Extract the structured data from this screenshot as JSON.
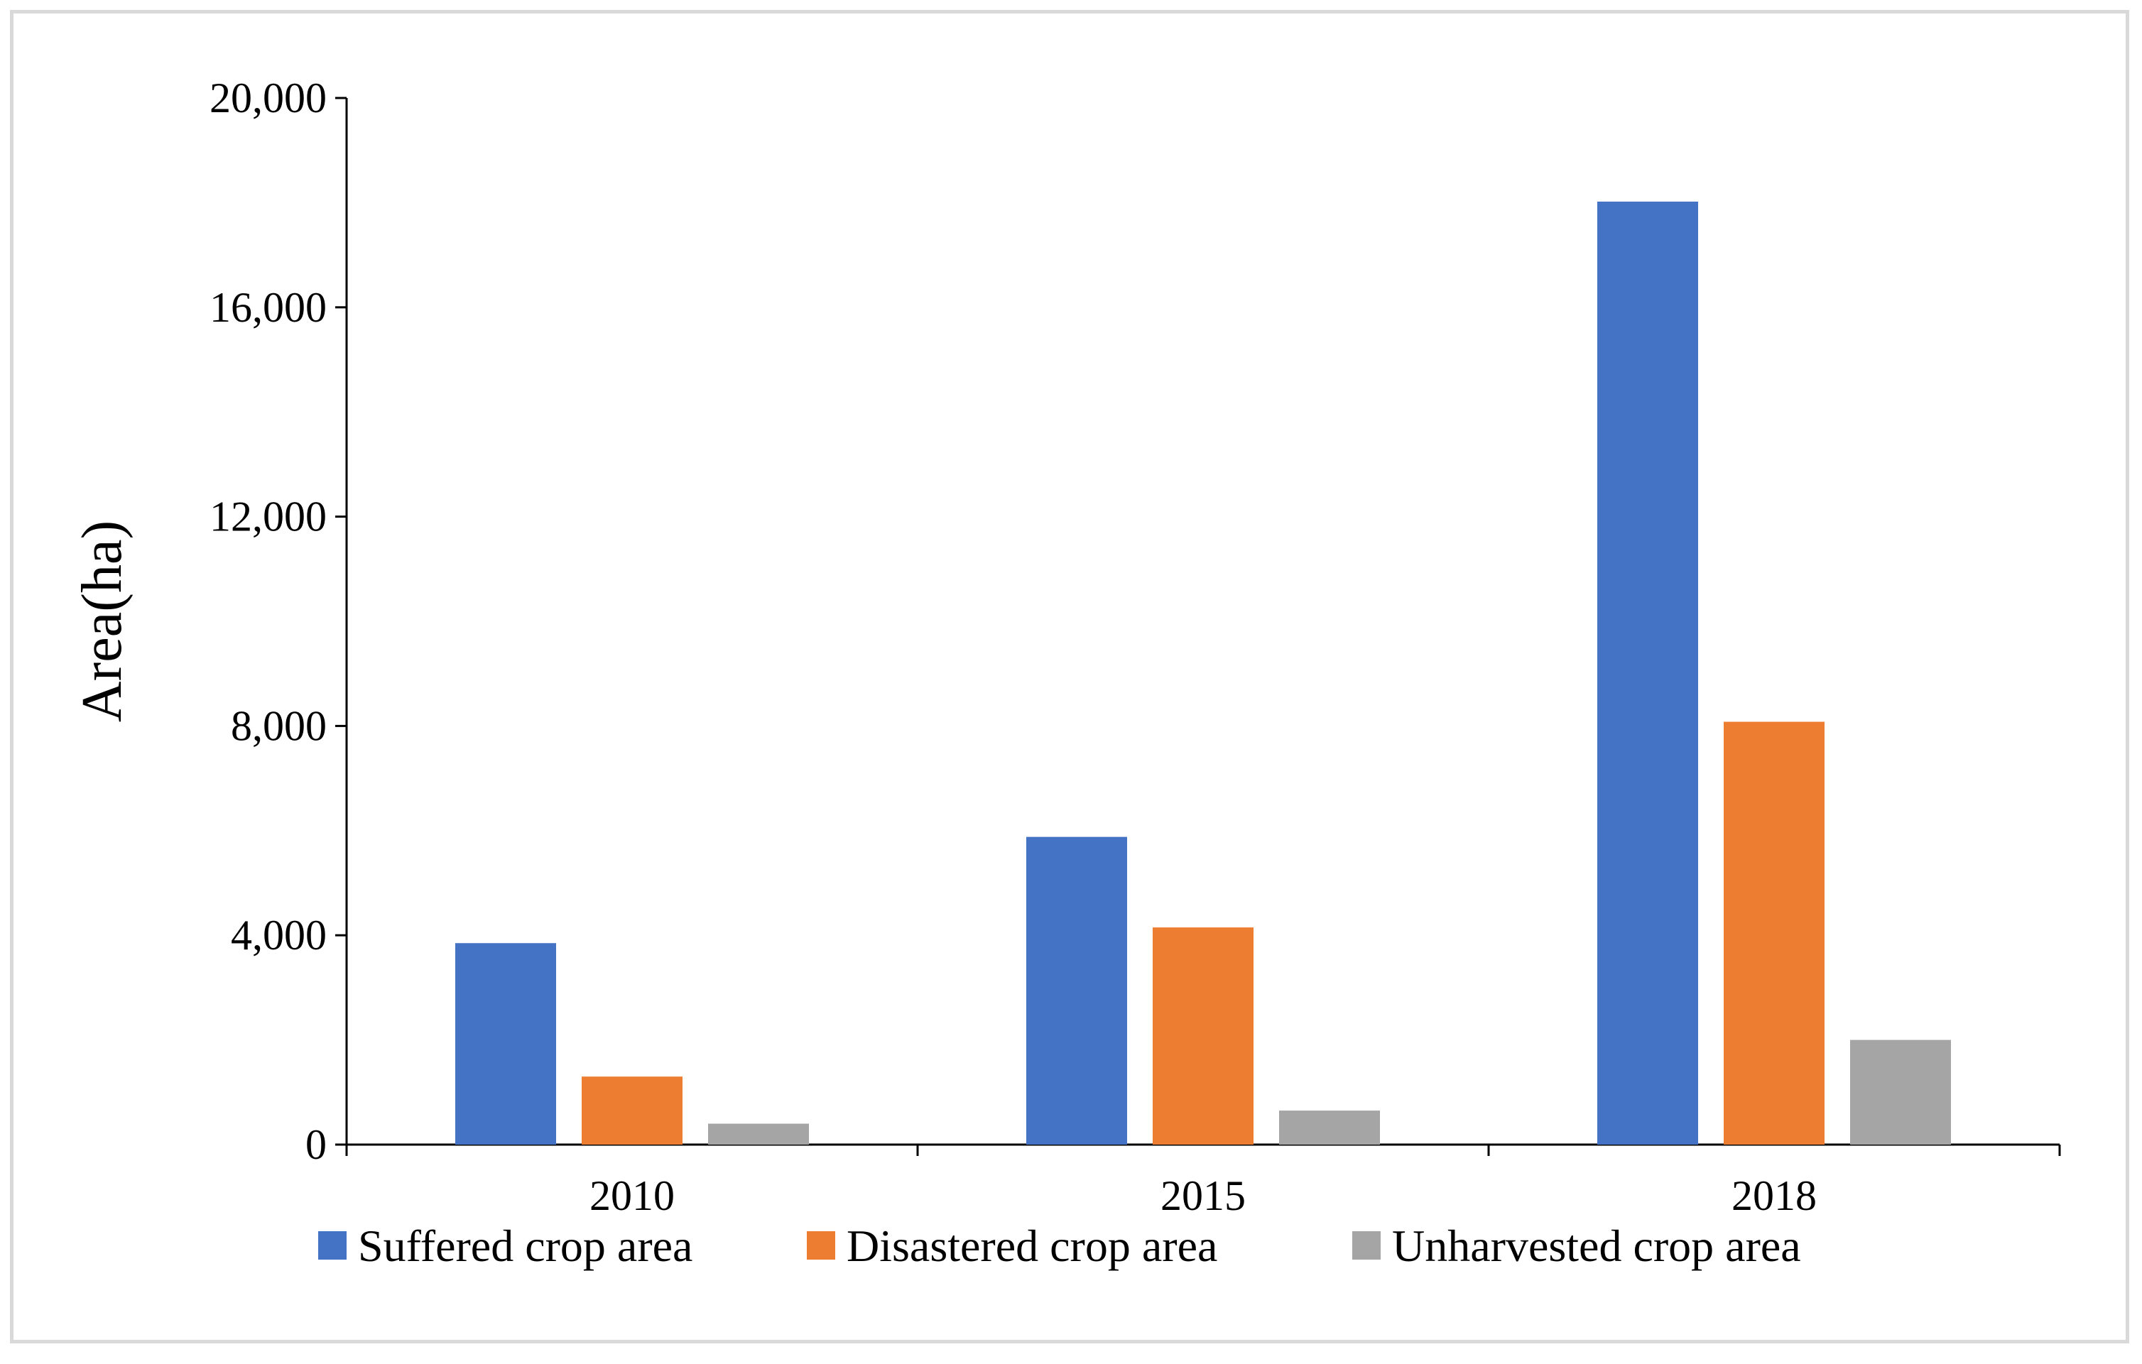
{
  "chart_data": {
    "type": "bar",
    "categories": [
      "2010",
      "2015",
      "2018"
    ],
    "series": [
      {
        "name": "Suffered crop area",
        "color": "#4472C4",
        "values": [
          3850,
          5880,
          18020
        ]
      },
      {
        "name": "Disastered crop area",
        "color": "#ED7D31",
        "values": [
          1300,
          4150,
          8080
        ]
      },
      {
        "name": "Unharvested crop area",
        "color": "#A5A5A5",
        "values": [
          400,
          650,
          2000
        ]
      }
    ],
    "ylabel": "Area(ha)",
    "xlabel": "",
    "ylim": [
      0,
      20000
    ],
    "yticks": [
      0,
      4000,
      8000,
      12000,
      16000,
      20000
    ],
    "ytick_labels": [
      "0",
      "4,000",
      "8,000",
      "12,000",
      "16,000",
      "20,000"
    ],
    "legend_position": "bottom",
    "grid": false
  }
}
